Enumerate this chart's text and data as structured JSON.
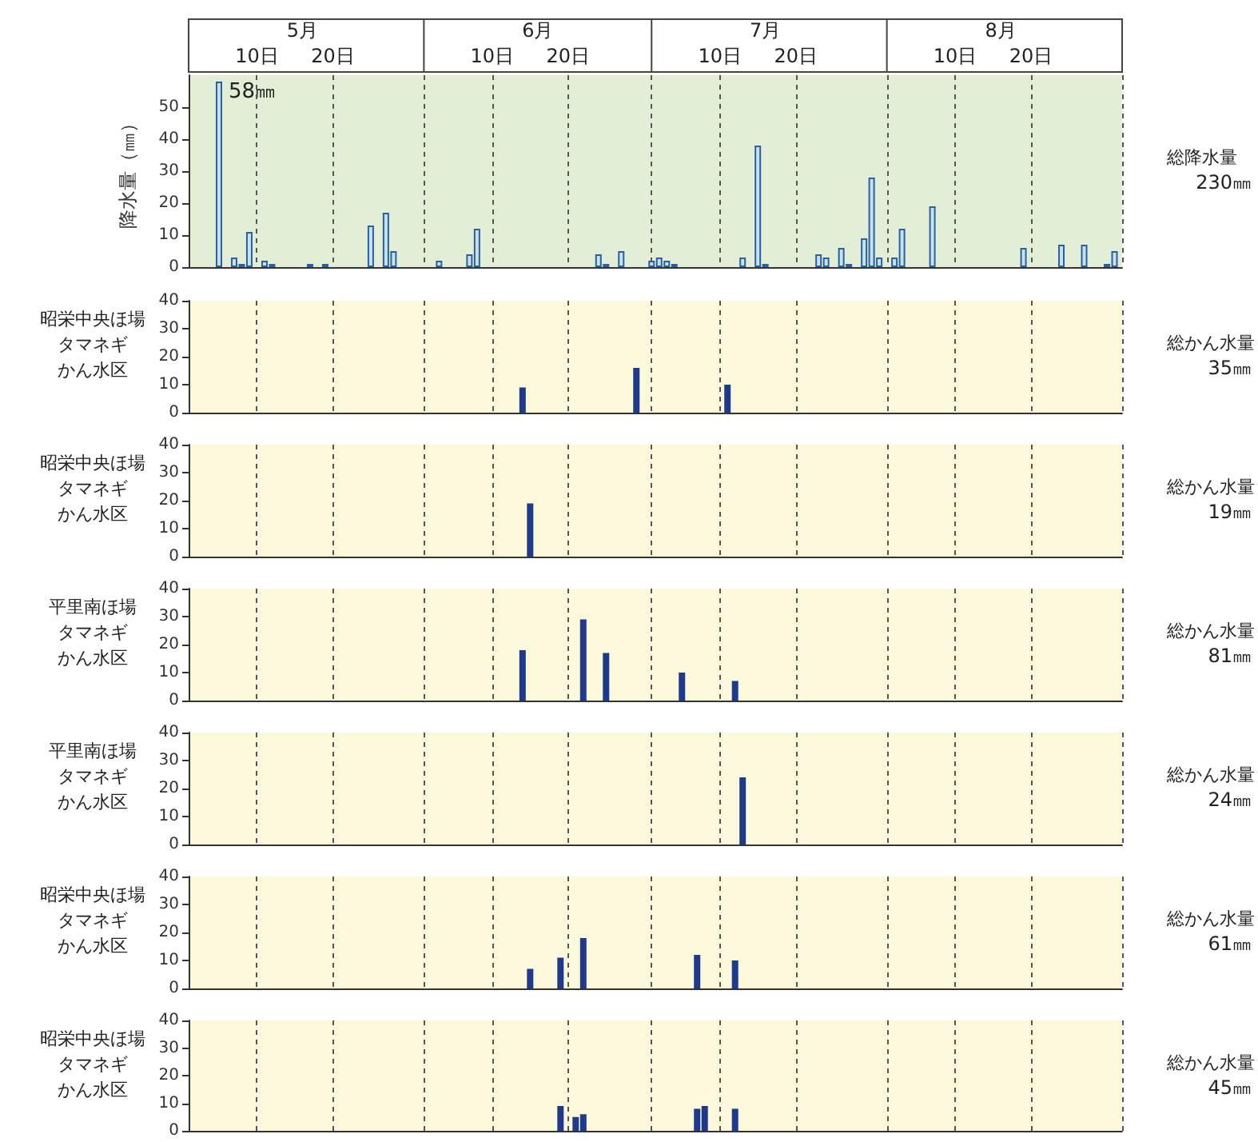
{
  "chart_data": [
    {
      "type": "bar",
      "ylabel": "降水量（㎜）",
      "annotations": [
        "総降水量",
        "230㎜",
        {
          "text": "58㎜",
          "x": "--05-05",
          "y": 58
        }
      ],
      "x2lim": [
        "--05-01",
        "--09-01"
      ],
      "color": "#c5e4f3",
      "grid": "x",
      "xlim": [
        "--05-01",
        "--09-01"
      ],
      "ylim": [
        0,
        60
      ],
      "yticks": [
        0,
        10,
        20,
        30,
        40,
        50
      ],
      "xticks": [
        {
          "value": "--05-10",
          "label": "10日"
        },
        {
          "value": "--05-20",
          "label": "20日"
        },
        {
          "value": "--06-01",
          "label": null
        },
        {
          "value": "--06-10",
          "label": "10日"
        },
        {
          "value": "--06-20",
          "label": "20日"
        },
        {
          "value": "--07-01",
          "label": null
        },
        {
          "value": "--07-10",
          "label": "10日"
        },
        {
          "value": "--07-20",
          "label": "20日"
        },
        {
          "value": "--08-01",
          "label": null
        },
        {
          "value": "--08-10",
          "label": "10日"
        },
        {
          "value": "--08-20",
          "label": "20日"
        },
        {
          "value": "--09-01",
          "label": null
        }
      ],
      "x2ticks": [
        {
          "value": "--05-16",
          "label": "5月"
        },
        {
          "value": "--06-16",
          "label": "6月"
        },
        {
          "value": "--07-16",
          "label": "7月"
        },
        {
          "value": "--08-16",
          "label": "8月"
        }
      ],
      "x": [
        "--05-05",
        "--05-07",
        "--05-08",
        "--05-09",
        "--05-11",
        "--05-12",
        "--05-17",
        "--05-19",
        "--05-25",
        "--05-27",
        "--05-28",
        "--06-03",
        "--06-07",
        "--06-08",
        "--06-24",
        "--06-25",
        "--06-27",
        "--07-01",
        "--07-02",
        "--07-03",
        "--07-04",
        "--07-13",
        "--07-15",
        "--07-16",
        "--07-23",
        "--07-24",
        "--07-26",
        "--07-27",
        "--07-29",
        "--07-30",
        "--07-31",
        "--08-02",
        "--08-03",
        "--08-07",
        "--08-19",
        "--08-24",
        "--08-27",
        "--08-30",
        "--08-31"
      ],
      "values": [
        58,
        3,
        1,
        11,
        2,
        1,
        1,
        1,
        13,
        17,
        5,
        2,
        4,
        12,
        4,
        1,
        5,
        2,
        3,
        2,
        1,
        3,
        38,
        1,
        4,
        3,
        6,
        1,
        9,
        28,
        3,
        3,
        12,
        19,
        6,
        7,
        7,
        1,
        5
      ]
    },
    {
      "type": "bar",
      "ylabel": "昭栄中央ほ場",
      "annotations": [
        "タマネギ",
        "かん水区",
        "総かん水量",
        "35㎜"
      ],
      "color": "#1f3a8a",
      "grid": "x",
      "tick_labels": "y",
      "xlim": [
        "--05-01",
        "--09-01"
      ],
      "ylim": [
        0,
        40
      ],
      "yticks": [
        0,
        10,
        20,
        30,
        40
      ],
      "xticks": [
        {
          "value": "--05-10",
          "label": null
        },
        {
          "value": "--05-20",
          "label": null
        },
        {
          "value": "--06-01",
          "label": null
        },
        {
          "value": "--06-10",
          "label": null
        },
        {
          "value": "--06-20",
          "label": null
        },
        {
          "value": "--07-01",
          "label": null
        },
        {
          "value": "--07-10",
          "label": null
        },
        {
          "value": "--07-20",
          "label": null
        },
        {
          "value": "--08-01",
          "label": null
        },
        {
          "value": "--08-10",
          "label": null
        },
        {
          "value": "--08-20",
          "label": null
        },
        {
          "value": "--09-01",
          "label": null
        }
      ],
      "x": [
        "--06-14",
        "--06-29",
        "--07-11"
      ],
      "values": [
        9,
        16,
        10
      ]
    },
    {
      "type": "bar",
      "ylabel": "昭栄中央ほ場",
      "annotations": [
        "タマネギ",
        "かん水区",
        "総かん水量",
        "19㎜"
      ],
      "color": "#1f3a8a",
      "grid": "x",
      "tick_labels": "y",
      "xlim": [
        "--05-01",
        "--09-01"
      ],
      "ylim": [
        0,
        40
      ],
      "yticks": [
        0,
        10,
        20,
        30,
        40
      ],
      "xticks": [
        {
          "value": "--05-10",
          "label": null
        },
        {
          "value": "--05-20",
          "label": null
        },
        {
          "value": "--06-01",
          "label": null
        },
        {
          "value": "--06-10",
          "label": null
        },
        {
          "value": "--06-20",
          "label": null
        },
        {
          "value": "--07-01",
          "label": null
        },
        {
          "value": "--07-10",
          "label": null
        },
        {
          "value": "--07-20",
          "label": null
        },
        {
          "value": "--08-01",
          "label": null
        },
        {
          "value": "--08-10",
          "label": null
        },
        {
          "value": "--08-20",
          "label": null
        },
        {
          "value": "--09-01",
          "label": null
        }
      ],
      "x": [
        "--06-15"
      ],
      "values": [
        19
      ]
    },
    {
      "type": "bar",
      "ylabel": "平里南ほ場",
      "annotations": [
        "タマネギ",
        "かん水区",
        "総かん水量",
        "81㎜"
      ],
      "color": "#1f3a8a",
      "grid": "x",
      "tick_labels": "y",
      "xlim": [
        "--05-01",
        "--09-01"
      ],
      "ylim": [
        0,
        40
      ],
      "yticks": [
        0,
        10,
        20,
        30,
        40
      ],
      "xticks": [
        {
          "value": "--05-10",
          "label": null
        },
        {
          "value": "--05-20",
          "label": null
        },
        {
          "value": "--06-01",
          "label": null
        },
        {
          "value": "--06-10",
          "label": null
        },
        {
          "value": "--06-20",
          "label": null
        },
        {
          "value": "--07-01",
          "label": null
        },
        {
          "value": "--07-10",
          "label": null
        },
        {
          "value": "--07-20",
          "label": null
        },
        {
          "value": "--08-01",
          "label": null
        },
        {
          "value": "--08-10",
          "label": null
        },
        {
          "value": "--08-20",
          "label": null
        },
        {
          "value": "--09-01",
          "label": null
        }
      ],
      "x": [
        "--06-14",
        "--06-22",
        "--06-25",
        "--07-05",
        "--07-12"
      ],
      "values": [
        18,
        29,
        17,
        10,
        7
      ]
    },
    {
      "type": "bar",
      "ylabel": "平里南ほ場",
      "annotations": [
        "タマネギ",
        "かん水区",
        "総かん水量",
        "24㎜"
      ],
      "color": "#1f3a8a",
      "grid": "x",
      "tick_labels": "y",
      "xlim": [
        "--05-01",
        "--09-01"
      ],
      "ylim": [
        0,
        40
      ],
      "yticks": [
        0,
        10,
        20,
        30,
        40
      ],
      "xticks": [
        {
          "value": "--05-10",
          "label": null
        },
        {
          "value": "--05-20",
          "label": null
        },
        {
          "value": "--06-01",
          "label": null
        },
        {
          "value": "--06-10",
          "label": null
        },
        {
          "value": "--06-20",
          "label": null
        },
        {
          "value": "--07-01",
          "label": null
        },
        {
          "value": "--07-10",
          "label": null
        },
        {
          "value": "--07-20",
          "label": null
        },
        {
          "value": "--08-01",
          "label": null
        },
        {
          "value": "--08-10",
          "label": null
        },
        {
          "value": "--08-20",
          "label": null
        },
        {
          "value": "--09-01",
          "label": null
        }
      ],
      "x": [
        "--07-13"
      ],
      "values": [
        24
      ]
    },
    {
      "type": "bar",
      "ylabel": "昭栄中央ほ場",
      "annotations": [
        "タマネギ",
        "かん水区",
        "総かん水量",
        "61㎜"
      ],
      "color": "#1f3a8a",
      "grid": "x",
      "tick_labels": "y",
      "xlim": [
        "--05-01",
        "--09-01"
      ],
      "ylim": [
        0,
        40
      ],
      "yticks": [
        0,
        10,
        20,
        30,
        40
      ],
      "xticks": [
        {
          "value": "--05-10",
          "label": null
        },
        {
          "value": "--05-20",
          "label": null
        },
        {
          "value": "--06-01",
          "label": null
        },
        {
          "value": "--06-10",
          "label": null
        },
        {
          "value": "--06-20",
          "label": null
        },
        {
          "value": "--07-01",
          "label": null
        },
        {
          "value": "--07-10",
          "label": null
        },
        {
          "value": "--07-20",
          "label": null
        },
        {
          "value": "--08-01",
          "label": null
        },
        {
          "value": "--08-10",
          "label": null
        },
        {
          "value": "--08-20",
          "label": null
        },
        {
          "value": "--09-01",
          "label": null
        }
      ],
      "x": [
        "--06-15",
        "--06-19",
        "--06-22",
        "--07-07",
        "--07-12"
      ],
      "values": [
        7,
        11,
        18,
        12,
        10
      ]
    },
    {
      "type": "bar",
      "ylabel": "昭栄中央ほ場",
      "annotations": [
        "タマネギ",
        "かん水区",
        "総かん水量",
        "45㎜"
      ],
      "color": "#1f3a8a",
      "grid": "x",
      "tick_labels": "y",
      "xlim": [
        "--05-01",
        "--09-01"
      ],
      "ylim": [
        0,
        40
      ],
      "yticks": [
        0,
        10,
        20,
        30,
        40
      ],
      "xticks": [
        {
          "value": "--05-10",
          "label": null
        },
        {
          "value": "--05-20",
          "label": null
        },
        {
          "value": "--06-01",
          "label": null
        },
        {
          "value": "--06-10",
          "label": null
        },
        {
          "value": "--06-20",
          "label": null
        },
        {
          "value": "--07-01",
          "label": null
        },
        {
          "value": "--07-10",
          "label": null
        },
        {
          "value": "--07-20",
          "label": null
        },
        {
          "value": "--08-01",
          "label": null
        },
        {
          "value": "--08-10",
          "label": null
        },
        {
          "value": "--08-20",
          "label": null
        },
        {
          "value": "--09-01",
          "label": null
        }
      ],
      "x": [
        "--06-19",
        "--06-21",
        "--06-22",
        "--07-07",
        "--07-08",
        "--07-12"
      ],
      "values": [
        9,
        5,
        6,
        8,
        9,
        8
      ]
    }
  ]
}
